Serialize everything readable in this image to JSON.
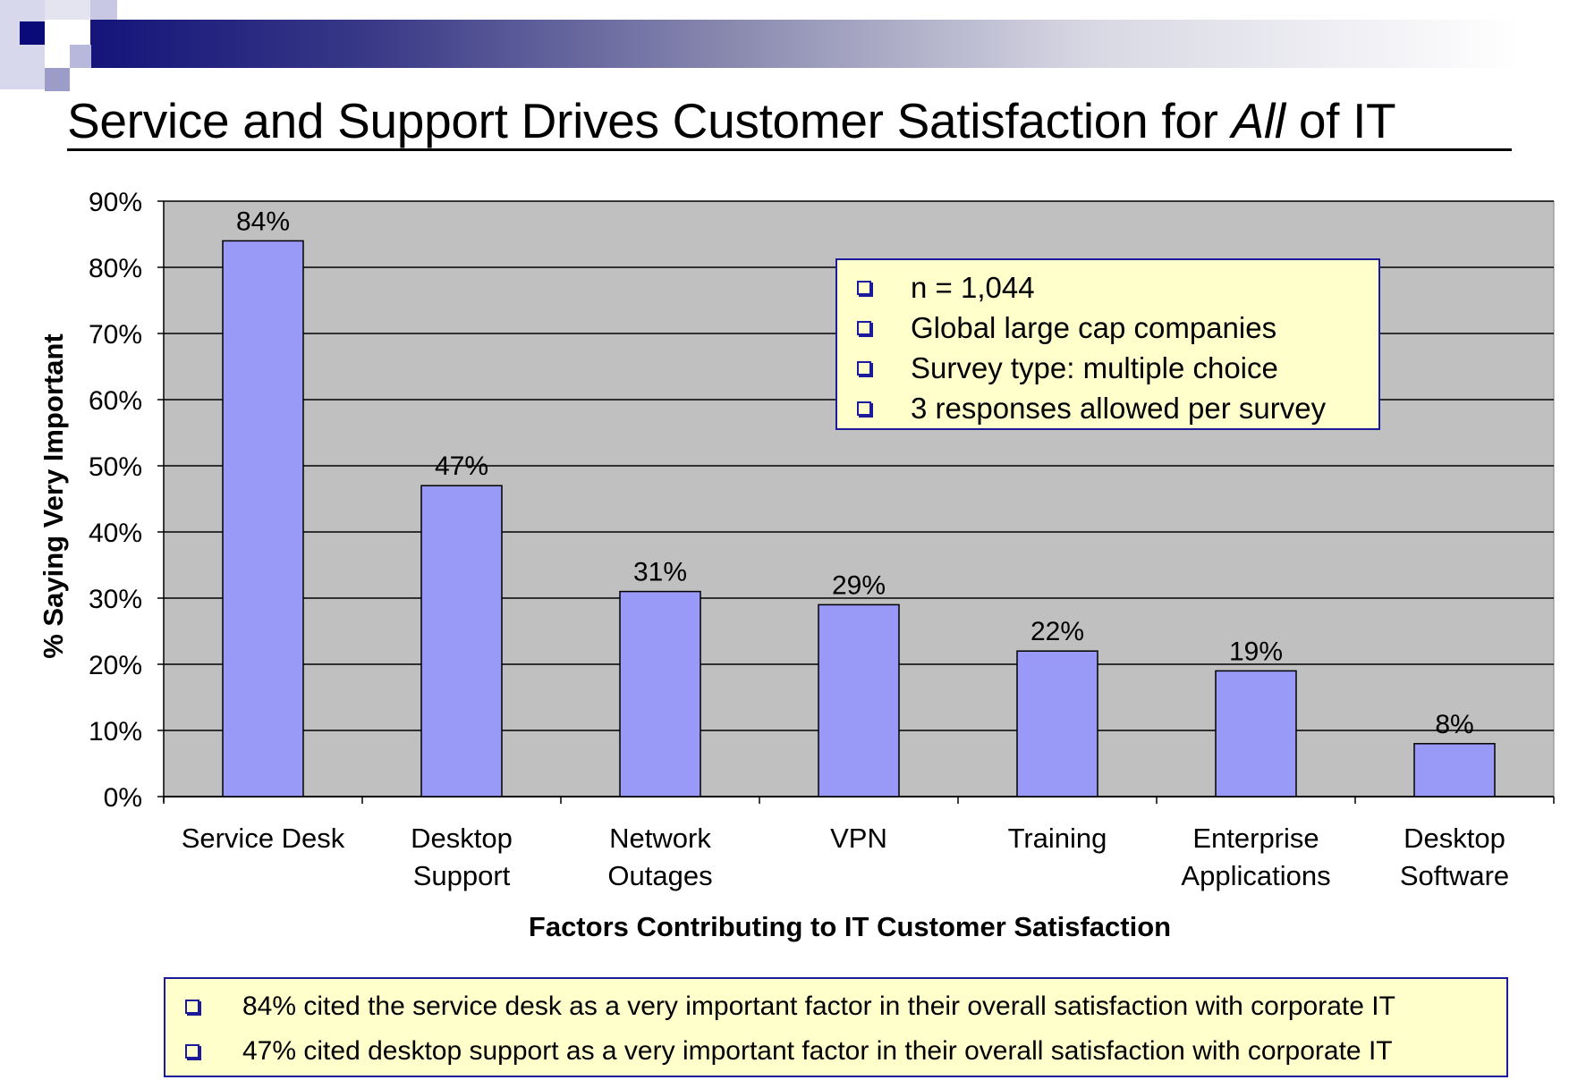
{
  "header": {
    "colors": {
      "bar_start": "#14147a",
      "accent": "#1a1a9a"
    }
  },
  "title_pre": "Service and Support Drives Customer Satisfaction for ",
  "title_italic": "All",
  "title_post": " of IT",
  "chart_data": {
    "type": "bar",
    "categories": [
      [
        "Service Desk"
      ],
      [
        "Desktop",
        "Support"
      ],
      [
        "Network",
        "Outages"
      ],
      [
        "VPN"
      ],
      [
        "Training"
      ],
      [
        "Enterprise",
        "Applications"
      ],
      [
        "Desktop",
        "Software"
      ]
    ],
    "values": [
      84,
      47,
      31,
      29,
      22,
      19,
      8
    ],
    "data_labels": [
      "84%",
      "47%",
      "31%",
      "29%",
      "22%",
      "19%",
      "8%"
    ],
    "xlabel": "Factors Contributing to IT Customer Satisfaction",
    "ylabel": "% Saying Very Important",
    "ylim": [
      0,
      90
    ],
    "yticks": [
      "0%",
      "10%",
      "20%",
      "30%",
      "40%",
      "50%",
      "60%",
      "70%",
      "80%",
      "90%"
    ],
    "grid": true,
    "bar_color": "#9999f8",
    "plot_bg": "#c0c0c0"
  },
  "legend": {
    "items": [
      "n = 1,044",
      "Global large cap companies",
      "Survey type: multiple choice",
      "3 responses allowed per survey"
    ]
  },
  "notes": [
    "84% cited the service desk as a very important factor in their overall satisfaction with corporate IT",
    "47% cited desktop support as a very important factor in their overall satisfaction with corporate IT"
  ]
}
